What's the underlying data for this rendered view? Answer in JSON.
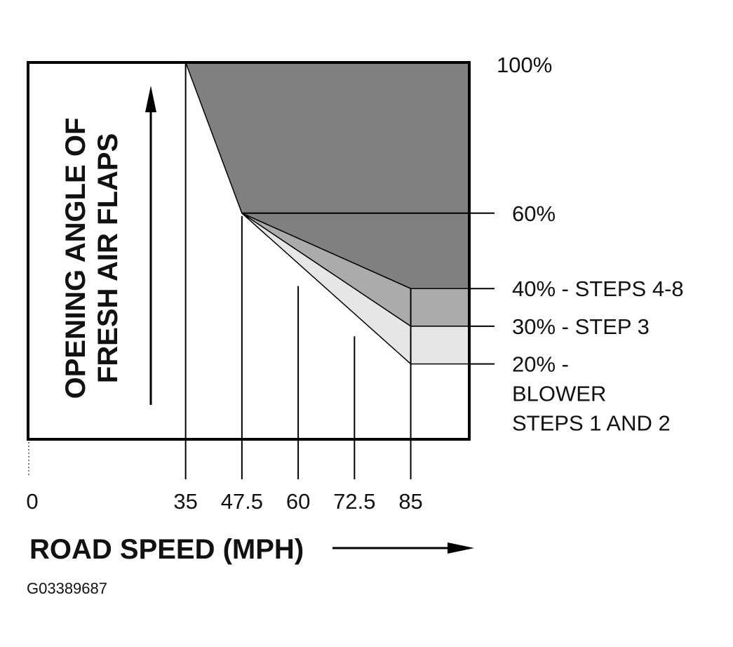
{
  "chart_data": {
    "type": "area",
    "ylabel_lines": [
      "OPENING ANGLE OF",
      "FRESH AIR FLAPS"
    ],
    "xlabel": "ROAD SPEED (MPH)",
    "x_ticks": [
      "0",
      "35",
      "47.5",
      "60",
      "72.5",
      "85"
    ],
    "x_tick_values": [
      0,
      35,
      47.5,
      60,
      72.5,
      85
    ],
    "y_axis_labels": [
      {
        "value": 100,
        "lines": [
          "100%"
        ]
      },
      {
        "value": 60,
        "lines": [
          "60%"
        ]
      },
      {
        "value": 40,
        "lines": [
          "40% - STEPS 4-8"
        ]
      },
      {
        "value": 30,
        "lines": [
          "30% - STEP 3"
        ]
      },
      {
        "value": 20,
        "lines": [
          "20% -",
          "BLOWER",
          "STEPS 1 AND 2"
        ]
      }
    ],
    "xlim": [
      0,
      98
    ],
    "ylim": [
      0,
      100
    ],
    "series": [
      {
        "x": [
          35,
          47.5,
          85
        ],
        "y": [
          100,
          60,
          40
        ],
        "fill": "#808080"
      },
      {
        "x": [
          47.5,
          85
        ],
        "y": [
          60,
          30
        ],
        "fill": "#ababab"
      },
      {
        "x": [
          47.5,
          85
        ],
        "y": [
          60,
          20
        ],
        "fill": "#e6e6e6"
      }
    ]
  },
  "figure_code": "G03389687"
}
